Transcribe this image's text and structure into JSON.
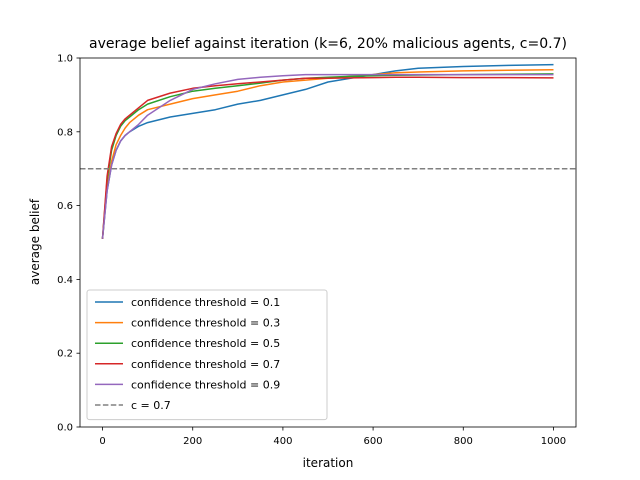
{
  "chart_data": {
    "type": "line",
    "title": "average belief against iteration (k=6, 20% malicious agents, c=0.7)",
    "xlabel": "iteration",
    "ylabel": "average belief",
    "xlim": [
      -50,
      1050
    ],
    "ylim": [
      0.0,
      1.0
    ],
    "xticks": [
      0,
      200,
      400,
      600,
      800,
      1000
    ],
    "yticks": [
      0.0,
      0.2,
      0.4,
      0.6,
      0.8,
      1.0
    ],
    "xtick_labels": [
      "0",
      "200",
      "400",
      "600",
      "800",
      "1000"
    ],
    "ytick_labels": [
      "0.0",
      "0.2",
      "0.4",
      "0.6",
      "0.8",
      "1.0"
    ],
    "grid": false,
    "legend_position": "lower-left",
    "series": [
      {
        "name": "confidence threshold = 0.1",
        "color": "#1f77b4",
        "x": [
          0,
          10,
          20,
          30,
          40,
          50,
          60,
          80,
          100,
          150,
          200,
          250,
          300,
          350,
          400,
          450,
          500,
          550,
          600,
          650,
          700,
          800,
          900,
          1000
        ],
        "y": [
          0.51,
          0.64,
          0.71,
          0.75,
          0.775,
          0.79,
          0.8,
          0.815,
          0.825,
          0.84,
          0.85,
          0.86,
          0.875,
          0.885,
          0.9,
          0.915,
          0.935,
          0.945,
          0.955,
          0.965,
          0.972,
          0.977,
          0.98,
          0.982
        ]
      },
      {
        "name": "confidence threshold = 0.3",
        "color": "#ff7f0e",
        "x": [
          0,
          10,
          20,
          30,
          40,
          50,
          60,
          80,
          100,
          150,
          200,
          250,
          300,
          350,
          400,
          450,
          500,
          550,
          600,
          650,
          700,
          800,
          900,
          1000
        ],
        "y": [
          0.51,
          0.65,
          0.72,
          0.765,
          0.79,
          0.81,
          0.825,
          0.845,
          0.86,
          0.875,
          0.89,
          0.9,
          0.91,
          0.925,
          0.935,
          0.94,
          0.945,
          0.95,
          0.955,
          0.96,
          0.962,
          0.965,
          0.967,
          0.968
        ]
      },
      {
        "name": "confidence threshold = 0.5",
        "color": "#2ca02c",
        "x": [
          0,
          10,
          20,
          30,
          40,
          50,
          60,
          80,
          100,
          150,
          200,
          250,
          300,
          350,
          400,
          450,
          500,
          550,
          600,
          650,
          700,
          800,
          900,
          1000
        ],
        "y": [
          0.51,
          0.67,
          0.75,
          0.79,
          0.815,
          0.83,
          0.84,
          0.86,
          0.875,
          0.895,
          0.91,
          0.918,
          0.925,
          0.932,
          0.94,
          0.945,
          0.948,
          0.95,
          0.952,
          0.953,
          0.954,
          0.955,
          0.956,
          0.957
        ]
      },
      {
        "name": "confidence threshold = 0.7",
        "color": "#d62728",
        "x": [
          0,
          10,
          20,
          30,
          40,
          50,
          60,
          80,
          100,
          150,
          200,
          250,
          300,
          350,
          400,
          450,
          500,
          550,
          600,
          650,
          700,
          800,
          900,
          1000
        ],
        "y": [
          0.51,
          0.68,
          0.76,
          0.795,
          0.82,
          0.835,
          0.845,
          0.865,
          0.885,
          0.905,
          0.918,
          0.925,
          0.93,
          0.935,
          0.94,
          0.945,
          0.945,
          0.946,
          0.947,
          0.948,
          0.948,
          0.947,
          0.947,
          0.946
        ]
      },
      {
        "name": "confidence threshold = 0.9",
        "color": "#9467bd",
        "x": [
          0,
          10,
          20,
          30,
          40,
          50,
          60,
          80,
          100,
          150,
          200,
          250,
          300,
          350,
          400,
          450,
          500,
          550,
          600,
          650,
          700,
          800,
          900,
          1000
        ],
        "y": [
          0.51,
          0.64,
          0.71,
          0.75,
          0.775,
          0.79,
          0.8,
          0.82,
          0.845,
          0.885,
          0.915,
          0.93,
          0.942,
          0.948,
          0.952,
          0.955,
          0.955,
          0.955,
          0.955,
          0.955,
          0.955,
          0.955,
          0.955,
          0.955
        ]
      },
      {
        "name": "c = 0.7",
        "color": "#808080",
        "dashed": true,
        "x": [
          -50,
          1050
        ],
        "y": [
          0.7,
          0.7
        ]
      }
    ]
  }
}
